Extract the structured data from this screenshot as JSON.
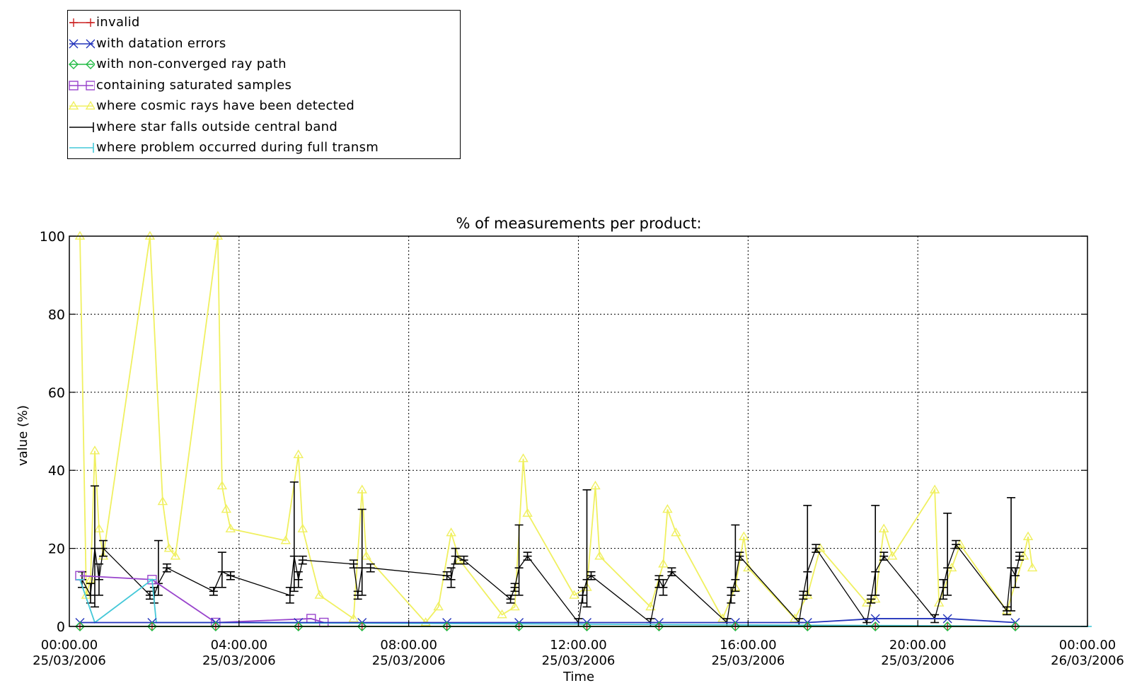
{
  "legend": {
    "placement": "top-left, outside plot",
    "items": [
      {
        "label": "invalid",
        "color": "#cc2222",
        "marker": "plus"
      },
      {
        "label": "with datation errors",
        "color": "#2233bb",
        "marker": "x"
      },
      {
        "label": "with non-converged ray path",
        "color": "#22bb44",
        "marker": "diamond"
      },
      {
        "label": "containing saturated samples",
        "color": "#9944cc",
        "marker": "square"
      },
      {
        "label": "where cosmic rays have been detected",
        "color": "#f0f060",
        "marker": "triangle"
      },
      {
        "label": "where star falls outside central band",
        "color": "#000000",
        "marker": "errorbar"
      },
      {
        "label": "where problem occurred during full transm",
        "color": "#44c8d8",
        "marker": "errorbar"
      }
    ]
  },
  "chart_data": {
    "type": "line",
    "title": "% of measurements per product:",
    "xlabel": "Time",
    "ylabel": "value (%)",
    "xlim_hours": [
      0,
      24
    ],
    "ylim": [
      0,
      100
    ],
    "grid": true,
    "x_ticks": [
      {
        "h": 0,
        "line1": "00:00.00",
        "line2": "25/03/2006"
      },
      {
        "h": 4,
        "line1": "04:00.00",
        "line2": "25/03/2006"
      },
      {
        "h": 8,
        "line1": "08:00.00",
        "line2": "25/03/2006"
      },
      {
        "h": 12,
        "line1": "12:00.00",
        "line2": "25/03/2006"
      },
      {
        "h": 16,
        "line1": "16:00.00",
        "line2": "25/03/2006"
      },
      {
        "h": 20,
        "line1": "20:00.00",
        "line2": "25/03/2006"
      },
      {
        "h": 24,
        "line1": "00:00.00",
        "line2": "26/03/2006"
      }
    ],
    "y_ticks": [
      "0",
      "20",
      "40",
      "60",
      "80",
      "100"
    ],
    "series": [
      {
        "name": "where cosmic rays have been detected",
        "color": "#f0f060",
        "marker": "triangle",
        "points": [
          [
            0.25,
            100
          ],
          [
            0.4,
            8
          ],
          [
            0.5,
            12
          ],
          [
            0.6,
            45
          ],
          [
            0.7,
            25
          ],
          [
            0.8,
            18
          ],
          [
            1.9,
            100
          ],
          [
            2.2,
            32
          ],
          [
            2.35,
            20
          ],
          [
            2.5,
            18
          ],
          [
            3.5,
            100
          ],
          [
            3.6,
            36
          ],
          [
            3.7,
            30
          ],
          [
            3.8,
            25
          ],
          [
            5.1,
            22
          ],
          [
            5.4,
            44
          ],
          [
            5.5,
            25
          ],
          [
            5.9,
            8
          ],
          [
            6.7,
            2
          ],
          [
            6.9,
            35
          ],
          [
            7.0,
            18
          ],
          [
            8.4,
            1
          ],
          [
            8.7,
            5
          ],
          [
            9.0,
            24
          ],
          [
            9.2,
            17
          ],
          [
            10.2,
            3
          ],
          [
            10.5,
            5
          ],
          [
            10.7,
            43
          ],
          [
            10.8,
            29
          ],
          [
            11.9,
            8
          ],
          [
            12.2,
            10
          ],
          [
            12.4,
            36
          ],
          [
            12.5,
            18
          ],
          [
            13.7,
            5
          ],
          [
            14.0,
            16
          ],
          [
            14.1,
            30
          ],
          [
            14.3,
            24
          ],
          [
            15.4,
            2
          ],
          [
            15.7,
            10
          ],
          [
            15.9,
            23
          ],
          [
            16.0,
            15
          ],
          [
            17.1,
            2
          ],
          [
            17.4,
            8
          ],
          [
            17.7,
            20
          ],
          [
            18.8,
            6
          ],
          [
            19.0,
            7
          ],
          [
            19.2,
            25
          ],
          [
            19.4,
            18
          ],
          [
            20.4,
            35
          ],
          [
            20.5,
            6
          ],
          [
            20.8,
            15
          ],
          [
            21.0,
            21
          ],
          [
            22.1,
            4
          ],
          [
            22.5,
            18
          ],
          [
            22.6,
            23
          ],
          [
            22.7,
            15
          ]
        ]
      },
      {
        "name": "where star falls outside central band",
        "color": "#000000",
        "marker": "errorbar",
        "points": [
          [
            0.3,
            12,
            10,
            14
          ],
          [
            0.5,
            8,
            6,
            11
          ],
          [
            0.6,
            20,
            5,
            36
          ],
          [
            0.7,
            12,
            8,
            16
          ],
          [
            0.8,
            20,
            18,
            22
          ],
          [
            1.9,
            8,
            7,
            9
          ],
          [
            2.0,
            8,
            6,
            10
          ],
          [
            2.1,
            11,
            8,
            22
          ],
          [
            2.3,
            15,
            14,
            16
          ],
          [
            3.4,
            9,
            8,
            10
          ],
          [
            3.6,
            14,
            10,
            19
          ],
          [
            3.8,
            13,
            12,
            14
          ],
          [
            5.2,
            8,
            6,
            10
          ],
          [
            5.3,
            18,
            9,
            37
          ],
          [
            5.4,
            12,
            10,
            14
          ],
          [
            5.5,
            17,
            16,
            18
          ],
          [
            6.7,
            16,
            15,
            17
          ],
          [
            6.8,
            8,
            7,
            9
          ],
          [
            6.9,
            15,
            8,
            30
          ],
          [
            7.1,
            15,
            14,
            16
          ],
          [
            8.9,
            13,
            12,
            14
          ],
          [
            9.0,
            12,
            10,
            15
          ],
          [
            9.1,
            18,
            16,
            20
          ],
          [
            9.3,
            17,
            16,
            18
          ],
          [
            10.4,
            7,
            6,
            8
          ],
          [
            10.5,
            10,
            9,
            11
          ],
          [
            10.6,
            15,
            8,
            26
          ],
          [
            10.8,
            18,
            17,
            19
          ],
          [
            12.0,
            1,
            0,
            2
          ],
          [
            12.1,
            8,
            6,
            10
          ],
          [
            12.2,
            12,
            5,
            35
          ],
          [
            12.3,
            13,
            12,
            14
          ],
          [
            13.7,
            1,
            0,
            2
          ],
          [
            13.9,
            12,
            10,
            13
          ],
          [
            14.0,
            10,
            8,
            12
          ],
          [
            14.2,
            14,
            13,
            15
          ],
          [
            15.5,
            1,
            0,
            2
          ],
          [
            15.6,
            8,
            6,
            10
          ],
          [
            15.7,
            12,
            9,
            26
          ],
          [
            15.8,
            18,
            17,
            19
          ],
          [
            17.2,
            1,
            0,
            2
          ],
          [
            17.3,
            8,
            7,
            9
          ],
          [
            17.4,
            14,
            8,
            31
          ],
          [
            17.6,
            20,
            19,
            21
          ],
          [
            18.8,
            1,
            0,
            2
          ],
          [
            18.9,
            7,
            6,
            8
          ],
          [
            19.0,
            14,
            8,
            31
          ],
          [
            19.2,
            18,
            17,
            19
          ],
          [
            20.4,
            2,
            1,
            3
          ],
          [
            20.6,
            10,
            7,
            12
          ],
          [
            20.7,
            15,
            8,
            29
          ],
          [
            20.9,
            21,
            20,
            22
          ],
          [
            22.1,
            4,
            3,
            5
          ],
          [
            22.2,
            15,
            4,
            33
          ],
          [
            22.3,
            13,
            10,
            15
          ],
          [
            22.4,
            18,
            17,
            19
          ]
        ]
      },
      {
        "name": "containing saturated samples",
        "color": "#9944cc",
        "marker": "square",
        "points": [
          [
            0.25,
            13
          ],
          [
            1.95,
            12
          ],
          [
            3.45,
            1
          ],
          [
            5.7,
            2
          ],
          [
            6.0,
            1
          ]
        ]
      },
      {
        "name": "where problem occurred during full transm",
        "color": "#44c8d8",
        "marker": "errorbar",
        "points": [
          [
            0.25,
            12
          ],
          [
            0.6,
            1
          ],
          [
            1.95,
            12
          ],
          [
            2.05,
            1
          ],
          [
            3.45,
            1
          ],
          [
            24.0,
            0
          ]
        ]
      },
      {
        "name": "with datation errors",
        "color": "#2233bb",
        "marker": "x",
        "points": [
          [
            0.25,
            1
          ],
          [
            1.95,
            1
          ],
          [
            3.45,
            1
          ],
          [
            5.4,
            1
          ],
          [
            6.9,
            1
          ],
          [
            8.9,
            1
          ],
          [
            10.6,
            1
          ],
          [
            12.2,
            1
          ],
          [
            13.9,
            1
          ],
          [
            15.7,
            1
          ],
          [
            17.4,
            1
          ],
          [
            19.0,
            2
          ],
          [
            20.7,
            2
          ],
          [
            22.3,
            1
          ]
        ]
      },
      {
        "name": "invalid",
        "color": "#cc2222",
        "marker": "plus",
        "points": [
          [
            0.25,
            0
          ],
          [
            1.95,
            0
          ],
          [
            3.45,
            0
          ],
          [
            5.4,
            0
          ],
          [
            6.9,
            0
          ],
          [
            8.9,
            0
          ],
          [
            10.6,
            0
          ],
          [
            12.2,
            0
          ],
          [
            13.9,
            0
          ],
          [
            15.7,
            0
          ],
          [
            17.4,
            0
          ],
          [
            19.0,
            0
          ],
          [
            20.7,
            0
          ],
          [
            22.3,
            0
          ]
        ]
      },
      {
        "name": "with non-converged ray path",
        "color": "#22bb44",
        "marker": "diamond",
        "points": [
          [
            0.25,
            0
          ],
          [
            1.95,
            0
          ],
          [
            3.45,
            0
          ],
          [
            5.4,
            0
          ],
          [
            6.9,
            0
          ],
          [
            8.9,
            0
          ],
          [
            10.6,
            0
          ],
          [
            12.2,
            0
          ],
          [
            13.9,
            0
          ],
          [
            15.7,
            0
          ],
          [
            17.4,
            0
          ],
          [
            19.0,
            0
          ],
          [
            20.7,
            0
          ],
          [
            22.3,
            0
          ]
        ]
      }
    ]
  }
}
